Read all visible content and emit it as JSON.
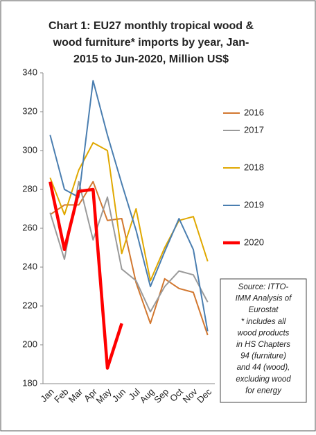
{
  "chart_data": {
    "type": "line",
    "title": [
      "Chart 1: EU27 monthly tropical wood &",
      "wood furniture* imports by year, Jan-",
      "2015 to Jun-2020, Million US$"
    ],
    "categories": [
      "Jan",
      "Feb",
      "Mar",
      "Apr",
      "May",
      "Jun",
      "Jul",
      "Aug",
      "Sep",
      "Oct",
      "Nov",
      "Dec"
    ],
    "series": [
      {
        "name": "2016",
        "color": "#d2772f",
        "values": [
          267,
          272,
          272,
          284,
          264,
          265,
          232,
          211,
          234,
          229,
          227,
          205
        ]
      },
      {
        "name": "2017",
        "color": "#9a9a9a",
        "values": [
          268,
          244,
          284,
          254,
          276,
          239,
          233,
          217,
          230,
          238,
          236,
          222
        ]
      },
      {
        "name": "2018",
        "color": "#e0a800",
        "values": [
          286,
          267,
          290,
          304,
          300,
          247,
          270,
          233,
          250,
          264,
          266,
          243
        ]
      },
      {
        "name": "2019",
        "color": "#4a7eb0",
        "values": [
          308,
          280,
          276,
          336,
          308,
          283,
          259,
          230,
          248,
          265,
          249,
          207
        ]
      },
      {
        "name": "2020",
        "color": "#ff0000",
        "values": [
          284,
          249,
          279,
          280,
          188,
          211,
          null,
          null,
          null,
          null,
          null,
          null
        ]
      }
    ],
    "ylim": [
      180,
      340
    ],
    "yticks": [
      180,
      200,
      220,
      240,
      260,
      280,
      300,
      320,
      340
    ],
    "annotation": [
      "Source: ITTO-",
      "IMM Analysis of",
      "Eurostat",
      "* includes all",
      "wood products",
      "in HS Chapters",
      "94 (furniture)",
      "and 44 (wood),",
      "excluding wood",
      "for energy"
    ]
  }
}
